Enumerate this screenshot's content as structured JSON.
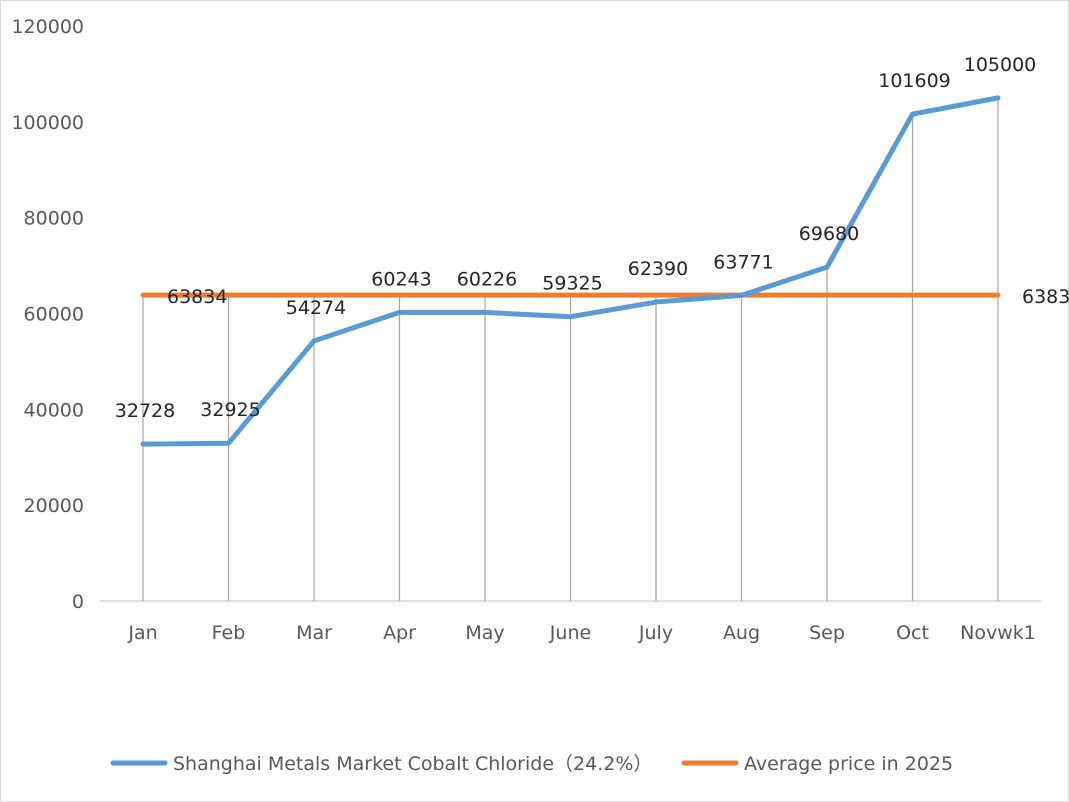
{
  "chart_data": {
    "type": "line",
    "categories": [
      "Jan",
      "Feb",
      "Mar",
      "Apr",
      "May",
      "June",
      "July",
      "Aug",
      "Sep",
      "Oct",
      "Novwk1"
    ],
    "series": [
      {
        "name": "Shanghai Metals Market Cobalt Chloride（24.2%）",
        "color": "#5B9BD5",
        "values": [
          32728,
          32925,
          54274,
          60243,
          60226,
          59325,
          62390,
          63771,
          69680,
          101609,
          105000
        ]
      },
      {
        "name": "Average price in 2025",
        "color": "#ED7D31",
        "values": [
          63834,
          63834,
          63834,
          63834,
          63834,
          63834,
          63834,
          63834,
          63834,
          63834,
          63834
        ],
        "labeled_points": [
          "Jan",
          "Novwk1"
        ]
      }
    ],
    "yticks": [
      0,
      20000,
      40000,
      60000,
      80000,
      100000,
      120000
    ],
    "ylim": [
      0,
      120000
    ],
    "drop_lines": true,
    "grid": false,
    "legend": "bottom"
  }
}
